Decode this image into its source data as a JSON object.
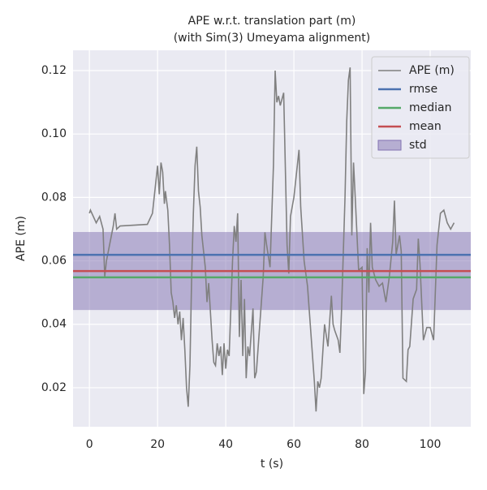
{
  "chart_data": {
    "type": "line",
    "title": "APE w.r.t. translation part (m)",
    "subtitle": "(with Sim(3) Umeyama alignment)",
    "xlabel": "t (s)",
    "ylabel": "APE (m)",
    "xlim": [
      -4.8,
      111.9
    ],
    "ylim": [
      0.0077,
      0.1264
    ],
    "xticks": [
      0,
      20,
      40,
      60,
      80,
      100
    ],
    "yticks": [
      0.02,
      0.04,
      0.06,
      0.08,
      {
        "value": 0.1,
        "label": "0.10"
      },
      0.12
    ],
    "grid": true,
    "legend": "upper right",
    "x": [
      0,
      0.3,
      2,
      3,
      4,
      4.5,
      5,
      7,
      7.5,
      8,
      9,
      17,
      18.5,
      20,
      20.5,
      21,
      21.5,
      22,
      22.3,
      23,
      23.5,
      24,
      24.5,
      25,
      25.5,
      26,
      26.5,
      27,
      27.5,
      28,
      28.5,
      29,
      29.5,
      30,
      30.5,
      31,
      31.5,
      32,
      32.5,
      33,
      34,
      34.5,
      35,
      35.5,
      36,
      36.5,
      37,
      37.5,
      38,
      38.5,
      39,
      39.5,
      40,
      40.5,
      41,
      42,
      42.5,
      43,
      43.5,
      44,
      44.5,
      45,
      45.5,
      46,
      46.5,
      47,
      48,
      48.5,
      49,
      50,
      51,
      51.5,
      52,
      53,
      54,
      54.5,
      55,
      55.5,
      56,
      57,
      58,
      58.5,
      59,
      60,
      61,
      61.5,
      62,
      63,
      64,
      65,
      66,
      66.5,
      67,
      67.5,
      68,
      69,
      70,
      71,
      71.5,
      72,
      73,
      73.5,
      74,
      75,
      75.5,
      76,
      76.5,
      77,
      77.5,
      78,
      79,
      80,
      80.5,
      81,
      81.5,
      82,
      82.5,
      83,
      84,
      85,
      86,
      87,
      88,
      89,
      89.5,
      90,
      91,
      91.5,
      92,
      93,
      93.5,
      94,
      95,
      96,
      96.5,
      97,
      98,
      99,
      100,
      101,
      102,
      103,
      104,
      105,
      106,
      107
    ],
    "series": [
      {
        "name": "APE (m)",
        "color": "#808080",
        "values": [
          0.075,
          0.076,
          0.072,
          0.074,
          0.07,
          0.055,
          0.06,
          0.071,
          0.075,
          0.07,
          0.071,
          0.0715,
          0.075,
          0.09,
          0.081,
          0.091,
          0.088,
          0.078,
          0.082,
          0.076,
          0.065,
          0.05,
          0.047,
          0.042,
          0.046,
          0.04,
          0.044,
          0.035,
          0.042,
          0.032,
          0.02,
          0.014,
          0.027,
          0.055,
          0.075,
          0.09,
          0.096,
          0.082,
          0.077,
          0.068,
          0.058,
          0.047,
          0.053,
          0.044,
          0.035,
          0.028,
          0.027,
          0.034,
          0.03,
          0.033,
          0.024,
          0.034,
          0.026,
          0.032,
          0.03,
          0.06,
          0.071,
          0.066,
          0.075,
          0.036,
          0.054,
          0.03,
          0.048,
          0.023,
          0.033,
          0.03,
          0.045,
          0.023,
          0.025,
          0.04,
          0.055,
          0.069,
          0.065,
          0.058,
          0.09,
          0.12,
          0.11,
          0.112,
          0.109,
          0.113,
          0.065,
          0.056,
          0.074,
          0.08,
          0.09,
          0.095,
          0.077,
          0.06,
          0.052,
          0.037,
          0.022,
          0.0125,
          0.022,
          0.02,
          0.023,
          0.04,
          0.033,
          0.049,
          0.04,
          0.038,
          0.035,
          0.031,
          0.045,
          0.08,
          0.104,
          0.117,
          0.121,
          0.068,
          0.091,
          0.08,
          0.057,
          0.058,
          0.018,
          0.025,
          0.064,
          0.05,
          0.072,
          0.058,
          0.054,
          0.052,
          0.053,
          0.047,
          0.055,
          0.066,
          0.079,
          0.062,
          0.068,
          0.063,
          0.023,
          0.022,
          0.032,
          0.033,
          0.048,
          0.051,
          0.067,
          0.059,
          0.035,
          0.039,
          0.039,
          0.035,
          0.065,
          0.075,
          0.076,
          0.072,
          0.07,
          0.072
        ]
      }
    ],
    "stats": [
      {
        "name": "rmse",
        "color": "#4c72b0",
        "value": 0.0619
      },
      {
        "name": "median",
        "color": "#55a868",
        "value": 0.0548
      },
      {
        "name": "mean",
        "color": "#c44e52",
        "value": 0.0568
      }
    ],
    "band": {
      "name": "std",
      "color": "#8172b2",
      "value": 0.0123
    }
  }
}
